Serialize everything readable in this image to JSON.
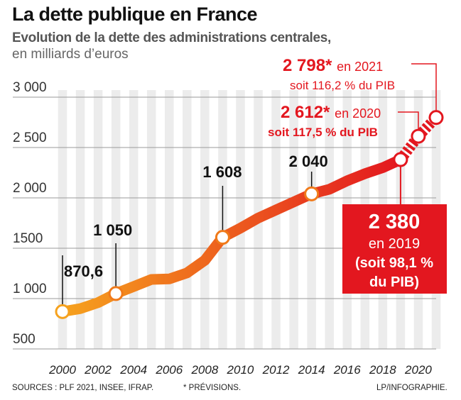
{
  "header": {
    "title": "La dette publique en France",
    "subtitle": "Evolution de la dette des administrations centrales,",
    "unit": "en milliards d’euros"
  },
  "footer": {
    "sources": "SOURCES : PLF 2021, INSEE, IFRAP.",
    "note": "* PRÉVISIONS.",
    "credit": "LP/INFOGRAPHIE."
  },
  "colors": {
    "line_start": "#f6a21e",
    "line_end": "#e3171f",
    "accent_red": "#e3171f",
    "stripe": "#d9d9d9"
  },
  "chart_data": {
    "type": "line",
    "title": "La dette publique en France",
    "subtitle": "Evolution de la dette des administrations centrales, en milliards d’euros",
    "xlabel": "",
    "ylabel": "",
    "xlim": [
      2000,
      2021
    ],
    "ylim": [
      500,
      3000
    ],
    "y_ticks": [
      {
        "value": 500,
        "label": "500"
      },
      {
        "value": 1000,
        "label": "1 000"
      },
      {
        "value": 1500,
        "label": "1500"
      },
      {
        "value": 2000,
        "label": "2 000"
      },
      {
        "value": 2500,
        "label": "2 500"
      },
      {
        "value": 3000,
        "label": "3 000"
      }
    ],
    "x_ticks": [
      {
        "value": 2000,
        "label": "2000"
      },
      {
        "value": 2002,
        "label": "2002"
      },
      {
        "value": 2004,
        "label": "2004"
      },
      {
        "value": 2006,
        "label": "2006"
      },
      {
        "value": 2008,
        "label": "2008"
      },
      {
        "value": 2010,
        "label": "2010"
      },
      {
        "value": 2012,
        "label": "2012"
      },
      {
        "value": 2014,
        "label": "2014"
      },
      {
        "value": 2016,
        "label": "2016"
      },
      {
        "value": 2018,
        "label": "2018"
      },
      {
        "value": 2020,
        "label": "2020"
      }
    ],
    "grid": true,
    "series": [
      {
        "x": [
          2000,
          2001,
          2002,
          2003,
          2004,
          2005,
          2006,
          2007,
          2008,
          2009,
          2010,
          2011,
          2012,
          2013,
          2014,
          2015,
          2016,
          2017,
          2018,
          2019
        ],
        "values": [
          870.6,
          900,
          960,
          1050,
          1120,
          1190,
          1195,
          1255,
          1380,
          1608,
          1700,
          1800,
          1880,
          1960,
          2040,
          2085,
          2170,
          2240,
          2300,
          2380
        ]
      },
      {
        "style": "dashed",
        "x": [
          2019,
          2020,
          2021
        ],
        "values": [
          2380,
          2612,
          2798
        ]
      }
    ],
    "annotations": [
      {
        "x": 2000,
        "y": 870.6,
        "label": "870,6"
      },
      {
        "x": 2003,
        "y": 1050,
        "label": "1 050"
      },
      {
        "x": 2009,
        "y": 1608,
        "label": "1 608"
      },
      {
        "x": 2014,
        "y": 2040,
        "label": "2 040"
      },
      {
        "x": 2019,
        "y": 2380,
        "label": "2 380",
        "line2": "en 2019",
        "line3": "(soit 98,1 %",
        "line4": "du PIB)"
      },
      {
        "x": 2020,
        "y": 2612,
        "value": "2 612*",
        "suffix": "en 2020",
        "detail": "soit 117,5 % du PIB"
      },
      {
        "x": 2021,
        "y": 2798,
        "value": "2 798*",
        "suffix": "en 2021",
        "detail": "soit 116,2 % du PIB"
      }
    ]
  }
}
